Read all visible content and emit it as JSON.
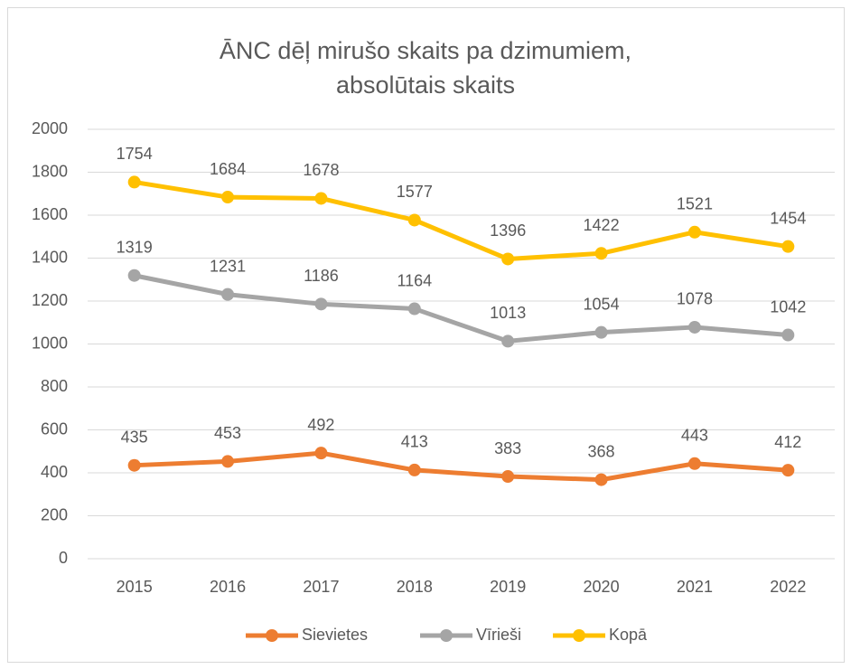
{
  "chart_data": {
    "type": "line",
    "title": [
      "ĀNC dēļ mirušo skaits pa dzimumiem,",
      "absolūtais skaits"
    ],
    "categories": [
      "2015",
      "2016",
      "2017",
      "2018",
      "2019",
      "2020",
      "2021",
      "2022"
    ],
    "series": [
      {
        "name": "Sievietes",
        "color": "#ed7d31",
        "values": [
          435,
          453,
          492,
          413,
          383,
          368,
          443,
          412
        ]
      },
      {
        "name": "Vīrieši",
        "color": "#a5a5a5",
        "values": [
          1319,
          1231,
          1186,
          1164,
          1013,
          1054,
          1078,
          1042
        ]
      },
      {
        "name": "Kopā",
        "color": "#ffc000",
        "values": [
          1754,
          1684,
          1678,
          1577,
          1396,
          1422,
          1521,
          1454
        ]
      }
    ],
    "ylim": [
      0,
      2000
    ],
    "yticks": [
      0,
      200,
      400,
      600,
      800,
      1000,
      1200,
      1400,
      1600,
      1800,
      2000
    ],
    "grid": true,
    "legend": "bottom"
  }
}
